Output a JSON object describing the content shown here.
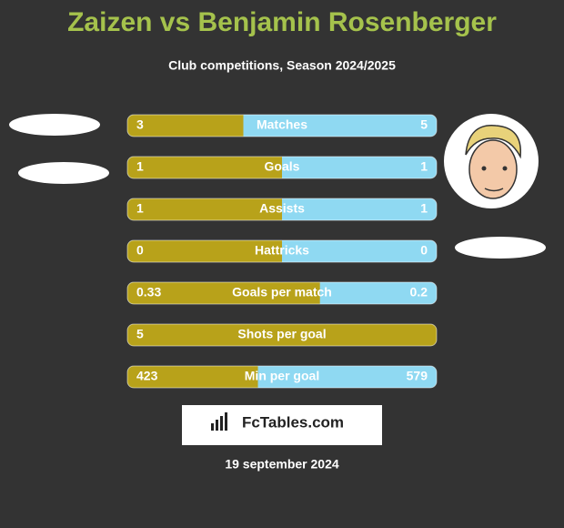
{
  "header": {
    "title": "Zaizen vs Benjamin Rosenberger",
    "subtitle": "Club competitions, Season 2024/2025"
  },
  "rows": [
    {
      "label": "Matches",
      "left": 3,
      "right": 5
    },
    {
      "label": "Goals",
      "left": 1,
      "right": 1
    },
    {
      "label": "Assists",
      "left": 1,
      "right": 1
    },
    {
      "label": "Hattricks",
      "left": 0,
      "right": 0
    },
    {
      "label": "Goals per match",
      "left": 0.33,
      "right": 0.2
    },
    {
      "label": "Shots per goal",
      "left": 5
    },
    {
      "label": "Min per goal",
      "left": 423,
      "right": 579
    }
  ],
  "colors": {
    "left": "#b8a21a",
    "right": "#8fd9f2"
  },
  "logo": "FcTables.com",
  "date": "19 september 2024"
}
